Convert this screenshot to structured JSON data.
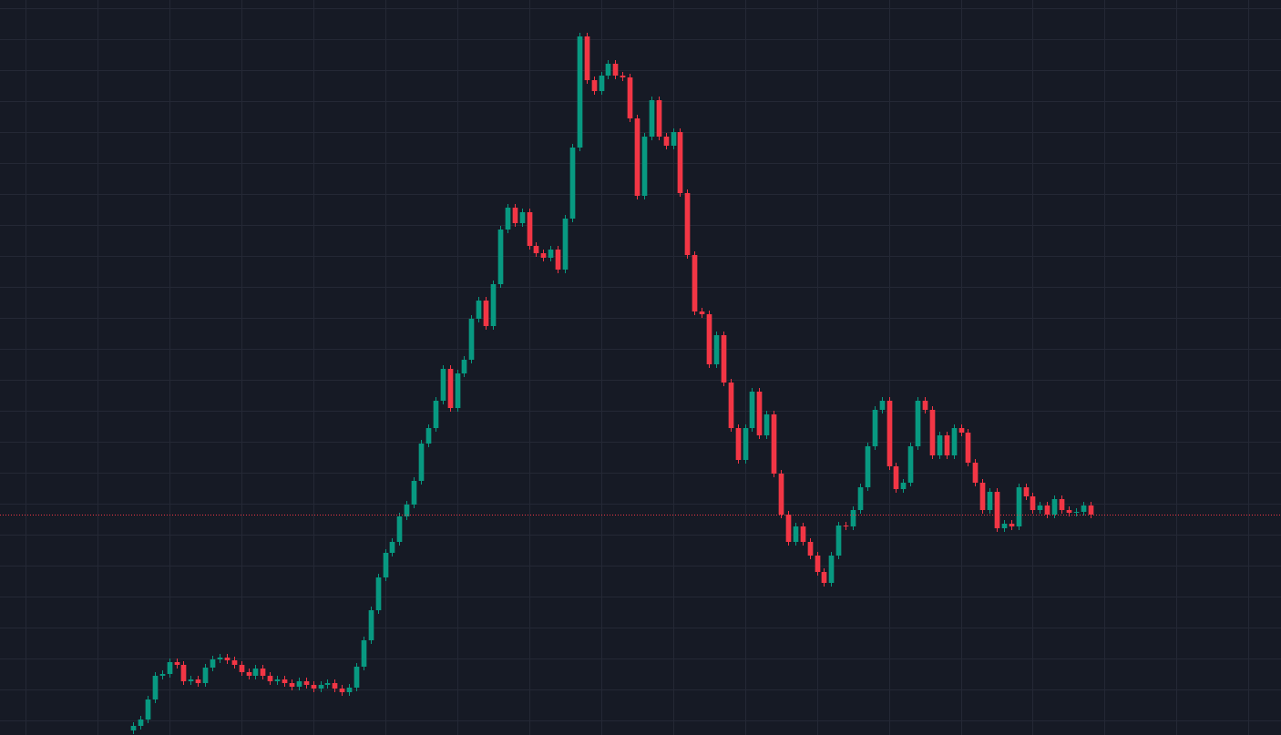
{
  "chart_data": {
    "type": "candlestick",
    "up_color": "#089981",
    "down_color": "#f23645",
    "grid": true,
    "grid_color": "#242835",
    "xlim": [
      -18.5,
      159.5
    ],
    "xticks": [
      -15,
      -5,
      5,
      15,
      25,
      35,
      45,
      55,
      65,
      75,
      85,
      95,
      105,
      115,
      125,
      135,
      145,
      155
    ],
    "ylim": [
      0,
      807
    ],
    "yticks": [
      16,
      50,
      84,
      118,
      152,
      186,
      220,
      254,
      288,
      322,
      356,
      390,
      424,
      458,
      492,
      526,
      560,
      594,
      628,
      662,
      696,
      730,
      764,
      798
    ],
    "last_price": 242,
    "ohlc": [
      [
        5,
        14,
        1,
        10
      ],
      [
        10,
        21,
        6,
        17
      ],
      [
        17,
        43,
        13,
        39
      ],
      [
        39,
        69,
        35,
        65
      ],
      [
        65,
        71,
        61,
        67
      ],
      [
        67,
        84,
        63,
        80
      ],
      [
        80,
        84,
        73,
        77
      ],
      [
        77,
        81,
        55,
        59
      ],
      [
        59,
        65,
        55,
        61
      ],
      [
        61,
        65,
        53,
        57
      ],
      [
        57,
        78,
        53,
        74
      ],
      [
        74,
        87,
        70,
        83
      ],
      [
        83,
        89,
        79,
        85
      ],
      [
        85,
        89,
        78,
        82
      ],
      [
        82,
        86,
        73,
        77
      ],
      [
        77,
        81,
        65,
        69
      ],
      [
        69,
        73,
        61,
        65
      ],
      [
        65,
        77,
        61,
        73
      ],
      [
        73,
        77,
        61,
        65
      ],
      [
        65,
        69,
        55,
        59
      ],
      [
        59,
        65,
        55,
        61
      ],
      [
        61,
        65,
        53,
        57
      ],
      [
        57,
        61,
        49,
        53
      ],
      [
        53,
        63,
        49,
        59
      ],
      [
        59,
        63,
        51,
        55
      ],
      [
        55,
        59,
        47,
        51
      ],
      [
        51,
        59,
        47,
        55
      ],
      [
        55,
        61,
        51,
        57
      ],
      [
        57,
        61,
        47,
        51
      ],
      [
        51,
        55,
        43,
        47
      ],
      [
        47,
        56,
        43,
        52
      ],
      [
        52,
        79,
        48,
        75
      ],
      [
        75,
        108,
        71,
        104
      ],
      [
        104,
        141,
        100,
        137
      ],
      [
        137,
        177,
        133,
        173
      ],
      [
        173,
        204,
        169,
        200
      ],
      [
        200,
        216,
        196,
        212
      ],
      [
        212,
        244,
        208,
        240
      ],
      [
        240,
        257,
        236,
        253
      ],
      [
        253,
        283,
        249,
        279
      ],
      [
        279,
        324,
        275,
        320
      ],
      [
        320,
        341,
        316,
        337
      ],
      [
        337,
        371,
        333,
        367
      ],
      [
        367,
        406,
        363,
        402
      ],
      [
        402,
        406,
        355,
        359
      ],
      [
        359,
        401,
        355,
        397
      ],
      [
        397,
        416,
        393,
        412
      ],
      [
        412,
        461,
        408,
        457
      ],
      [
        457,
        481,
        453,
        477
      ],
      [
        477,
        481,
        445,
        449
      ],
      [
        449,
        499,
        445,
        495
      ],
      [
        495,
        559,
        491,
        555
      ],
      [
        555,
        583,
        551,
        579
      ],
      [
        579,
        583,
        558,
        562
      ],
      [
        562,
        578,
        558,
        574
      ],
      [
        574,
        578,
        533,
        537
      ],
      [
        537,
        541,
        525,
        529
      ],
      [
        529,
        533,
        520,
        524
      ],
      [
        524,
        537,
        520,
        533
      ],
      [
        533,
        537,
        507,
        511
      ],
      [
        511,
        571,
        507,
        567
      ],
      [
        567,
        649,
        563,
        645
      ],
      [
        645,
        771,
        641,
        767
      ],
      [
        767,
        771,
        715,
        719
      ],
      [
        719,
        723,
        703,
        707
      ],
      [
        707,
        728,
        703,
        724
      ],
      [
        724,
        741,
        720,
        737
      ],
      [
        737,
        741,
        720,
        724
      ],
      [
        724,
        728,
        718,
        722
      ],
      [
        722,
        726,
        673,
        677
      ],
      [
        677,
        681,
        588,
        592
      ],
      [
        592,
        661,
        588,
        657
      ],
      [
        657,
        701,
        653,
        697
      ],
      [
        697,
        701,
        653,
        657
      ],
      [
        657,
        661,
        643,
        647
      ],
      [
        647,
        666,
        643,
        662
      ],
      [
        662,
        666,
        591,
        595
      ],
      [
        595,
        599,
        523,
        527
      ],
      [
        527,
        531,
        461,
        465
      ],
      [
        465,
        469,
        458,
        462
      ],
      [
        462,
        466,
        403,
        407
      ],
      [
        407,
        443,
        403,
        439
      ],
      [
        439,
        443,
        383,
        387
      ],
      [
        387,
        391,
        333,
        337
      ],
      [
        337,
        341,
        298,
        302
      ],
      [
        302,
        341,
        298,
        337
      ],
      [
        337,
        381,
        333,
        377
      ],
      [
        377,
        381,
        325,
        329
      ],
      [
        329,
        356,
        325,
        352
      ],
      [
        352,
        356,
        283,
        287
      ],
      [
        287,
        291,
        238,
        242
      ],
      [
        242,
        246,
        208,
        212
      ],
      [
        212,
        233,
        208,
        229
      ],
      [
        229,
        233,
        208,
        212
      ],
      [
        212,
        216,
        193,
        197
      ],
      [
        197,
        201,
        175,
        179
      ],
      [
        179,
        183,
        163,
        167
      ],
      [
        167,
        201,
        163,
        197
      ],
      [
        197,
        234,
        193,
        230
      ],
      [
        230,
        234,
        225,
        229
      ],
      [
        229,
        251,
        225,
        247
      ],
      [
        247,
        276,
        243,
        272
      ],
      [
        272,
        321,
        268,
        317
      ],
      [
        317,
        361,
        313,
        357
      ],
      [
        357,
        371,
        353,
        367
      ],
      [
        367,
        371,
        291,
        295
      ],
      [
        295,
        299,
        266,
        270
      ],
      [
        270,
        281,
        266,
        277
      ],
      [
        277,
        321,
        273,
        317
      ],
      [
        317,
        371,
        313,
        367
      ],
      [
        367,
        371,
        353,
        357
      ],
      [
        357,
        361,
        303,
        307
      ],
      [
        307,
        333,
        303,
        329
      ],
      [
        329,
        333,
        303,
        307
      ],
      [
        307,
        341,
        303,
        337
      ],
      [
        337,
        341,
        328,
        332
      ],
      [
        332,
        336,
        295,
        299
      ],
      [
        299,
        303,
        273,
        277
      ],
      [
        277,
        281,
        243,
        247
      ],
      [
        247,
        271,
        243,
        267
      ],
      [
        267,
        271,
        223,
        227
      ],
      [
        227,
        236,
        223,
        232
      ],
      [
        232,
        236,
        225,
        229
      ],
      [
        229,
        276,
        225,
        272
      ],
      [
        272,
        276,
        258,
        262
      ],
      [
        262,
        266,
        243,
        247
      ],
      [
        247,
        256,
        243,
        252
      ],
      [
        252,
        256,
        238,
        242
      ],
      [
        242,
        263,
        238,
        259
      ],
      [
        259,
        263,
        243,
        247
      ],
      [
        247,
        251,
        240,
        244
      ],
      [
        244,
        249,
        240,
        245
      ],
      [
        245,
        256,
        241,
        252
      ],
      [
        252,
        256,
        238,
        242
      ]
    ]
  }
}
